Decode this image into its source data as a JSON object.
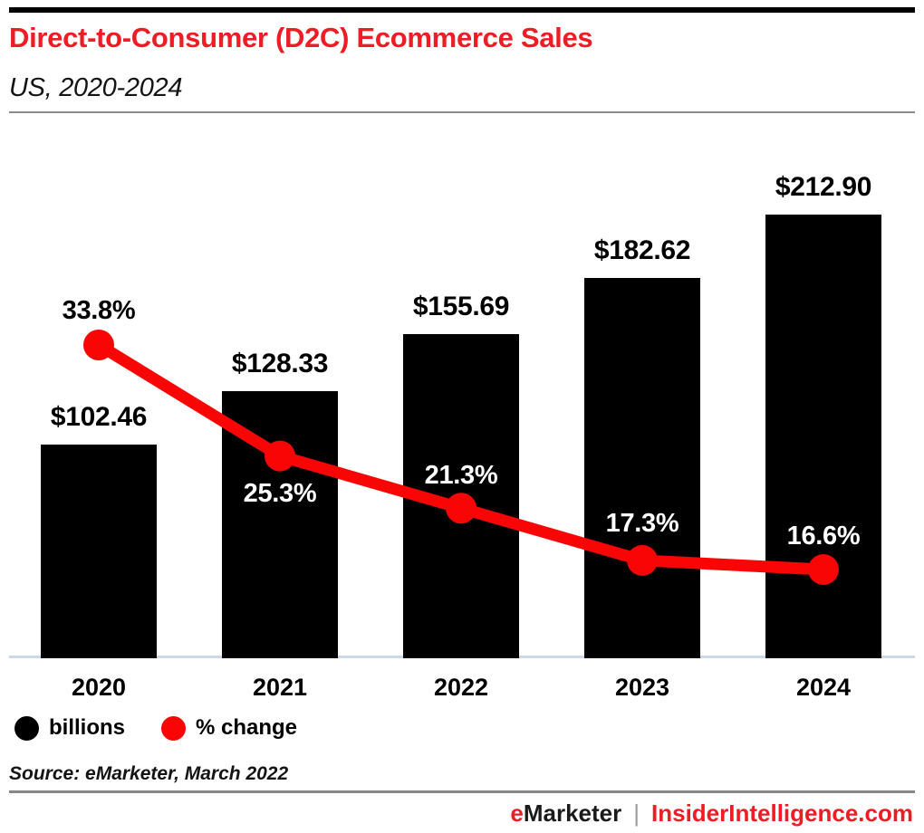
{
  "header": {
    "title": "Direct-to-Consumer (D2C) Ecommerce Sales",
    "subtitle": "US, 2020-2024"
  },
  "chart_data": {
    "type": "bar",
    "subtype": "bar-with-line-overlay",
    "categories": [
      "2020",
      "2021",
      "2022",
      "2023",
      "2024"
    ],
    "series": [
      {
        "name": "billions",
        "type": "bar",
        "unit": "US$ billions",
        "values": [
          102.46,
          128.33,
          155.69,
          182.62,
          212.9
        ],
        "labels": [
          "$102.46",
          "$128.33",
          "$155.69",
          "$182.62",
          "$212.90"
        ],
        "color": "#000000"
      },
      {
        "name": "% change",
        "type": "line",
        "unit": "percent",
        "values": [
          33.8,
          25.3,
          21.3,
          17.3,
          16.6
        ],
        "labels": [
          "33.8%",
          "25.3%",
          "17.3%",
          "16.6%"
        ],
        "labels_full": [
          "33.8%",
          "25.3%",
          "21.3%",
          "17.3%",
          "16.6%"
        ],
        "color": "#f90505"
      }
    ],
    "title": "Direct-to-Consumer (D2C) Ecommerce Sales",
    "xlabel": "",
    "ylabel": "",
    "grid": false,
    "legend_position": "bottom-left",
    "legend": [
      {
        "label": "billions",
        "color": "#000000"
      },
      {
        "label": "% change",
        "color": "#f90505"
      }
    ],
    "layout_hints": {
      "pct_label_dy": [
        -38,
        41,
        -36,
        -41,
        -37
      ],
      "pct_label_colors": [
        "#000000",
        "#ffffff",
        "#ffffff",
        "#ffffff",
        "#ffffff"
      ]
    }
  },
  "source": "Source: eMarketer, March 2022",
  "footer": {
    "brand_e": "e",
    "brand_rest": "Marketer",
    "separator": "|",
    "site": "InsiderIntelligence.com"
  },
  "colors": {
    "title_red": "#ee1c24",
    "chart_red": "#f90505",
    "bar_black": "#000000",
    "axis_line": "#ccd7e9",
    "divider_gray": "#8c8c8c"
  }
}
